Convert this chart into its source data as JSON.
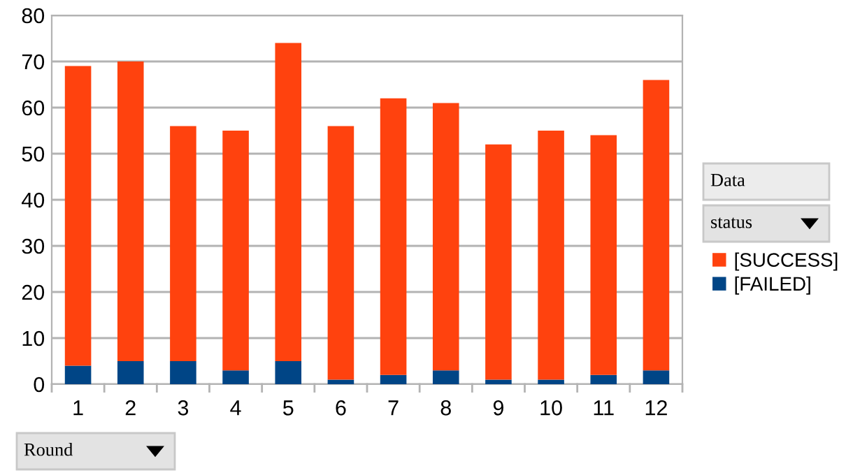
{
  "chart_data": {
    "type": "bar",
    "stacked": true,
    "categories": [
      "1",
      "2",
      "3",
      "4",
      "5",
      "6",
      "7",
      "8",
      "9",
      "10",
      "11",
      "12"
    ],
    "series": [
      {
        "name": "[FAILED]",
        "color": "#004586",
        "values": [
          4,
          5,
          5,
          3,
          5,
          1,
          2,
          3,
          1,
          1,
          2,
          3
        ]
      },
      {
        "name": "[SUCCESS]",
        "color": "#ff420e",
        "values": [
          65,
          65,
          51,
          52,
          69,
          55,
          60,
          58,
          51,
          54,
          52,
          63
        ]
      }
    ],
    "ylim": [
      0,
      80
    ],
    "yticks": [
      0,
      10,
      20,
      30,
      40,
      50,
      60,
      70,
      80
    ],
    "grid": "y",
    "legend": "right",
    "annotations": [
      "Data",
      "status",
      "Round"
    ]
  }
}
